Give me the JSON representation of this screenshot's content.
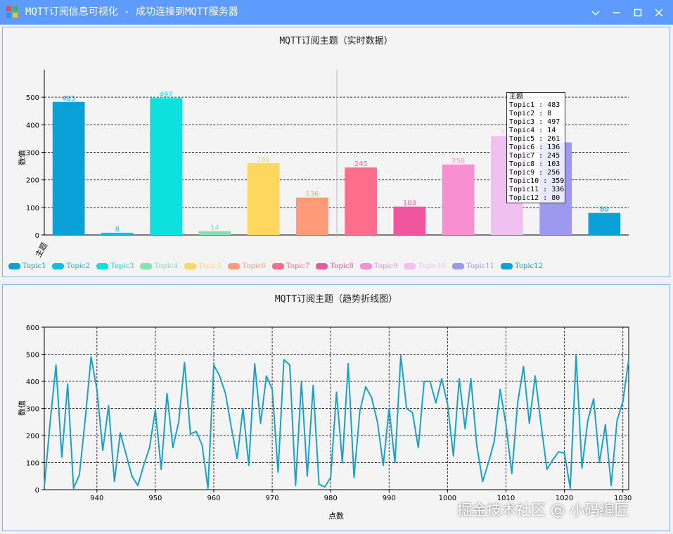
{
  "window": {
    "title": "MQTT订阅信息可视化 - 成功连接到MQTT服务器"
  },
  "colors": {
    "titlebar": "#5d9bff",
    "line": "#1ba1c9"
  },
  "bar_panel": {
    "title": "MQTT订阅主题（实时数据）",
    "xlabel": "主题",
    "ylabel": "数值",
    "tooltip_header": "主题",
    "tooltip_rows": [
      "Topic1 : 483",
      "Topic2 : 8",
      "Topic3 : 497",
      "Topic4 : 14",
      "Topic5 : 261",
      "Topic6 : 136",
      "Topic7 : 245",
      "Topic8 : 103",
      "Topic9 : 256",
      "Topic10 : 359",
      "Topic11 : 336",
      "Topic12 : 80"
    ]
  },
  "line_panel": {
    "title": "MQTT订阅主题（趋势折线图）",
    "xlabel": "点数",
    "ylabel": "数值"
  },
  "watermark": "掘金技术社区 @ 小码编匠",
  "chart_data": [
    {
      "type": "bar",
      "title": "MQTT订阅主题（实时数据）",
      "xlabel": "主题",
      "ylabel": "数值",
      "ylim": [
        0,
        600
      ],
      "yticks": [
        0,
        100,
        200,
        300,
        400,
        500
      ],
      "grid": true,
      "legend": "bottom",
      "categories": [
        "Topic1",
        "Topic2",
        "Topic3",
        "Topic4",
        "Topic5",
        "Topic6",
        "Topic7",
        "Topic8",
        "Topic9",
        "Topic10",
        "Topic11",
        "Topic12"
      ],
      "values": [
        483,
        8,
        497,
        14,
        261,
        136,
        245,
        103,
        256,
        359,
        336,
        80
      ],
      "colors": [
        "#0aa0d8",
        "#13bde0",
        "#0ee0e0",
        "#8be0b0",
        "#ffd75e",
        "#ff9b78",
        "#ff6d8d",
        "#f0569f",
        "#f890cf",
        "#f0c0f0",
        "#9d98f0",
        "#0aa0d8"
      ]
    },
    {
      "type": "line",
      "title": "MQTT订阅主题（趋势折线图）",
      "xlabel": "点数",
      "ylabel": "数值",
      "xlim": [
        931,
        1031
      ],
      "ylim": [
        0,
        600
      ],
      "xticks": [
        940,
        950,
        960,
        970,
        980,
        990,
        1000,
        1010,
        1020,
        1030
      ],
      "yticks": [
        0,
        100,
        200,
        300,
        400,
        500,
        600
      ],
      "grid": true,
      "x_start": 931,
      "values": [
        10,
        250,
        460,
        120,
        390,
        5,
        55,
        260,
        490,
        370,
        145,
        310,
        30,
        210,
        130,
        50,
        15,
        90,
        155,
        295,
        75,
        355,
        155,
        250,
        470,
        205,
        215,
        165,
        5,
        460,
        420,
        355,
        230,
        115,
        300,
        90,
        465,
        245,
        420,
        370,
        65,
        480,
        460,
        15,
        400,
        50,
        385,
        20,
        10,
        45,
        360,
        100,
        465,
        45,
        290,
        380,
        340,
        250,
        90,
        300,
        100,
        495,
        300,
        285,
        155,
        400,
        400,
        320,
        410,
        315,
        125,
        410,
        225,
        410,
        165,
        30,
        100,
        180,
        370,
        240,
        60,
        320,
        455,
        245,
        420,
        240,
        75,
        110,
        140,
        135,
        5,
        495,
        80,
        255,
        335,
        100,
        240,
        15,
        255,
        325,
        480
      ]
    }
  ]
}
